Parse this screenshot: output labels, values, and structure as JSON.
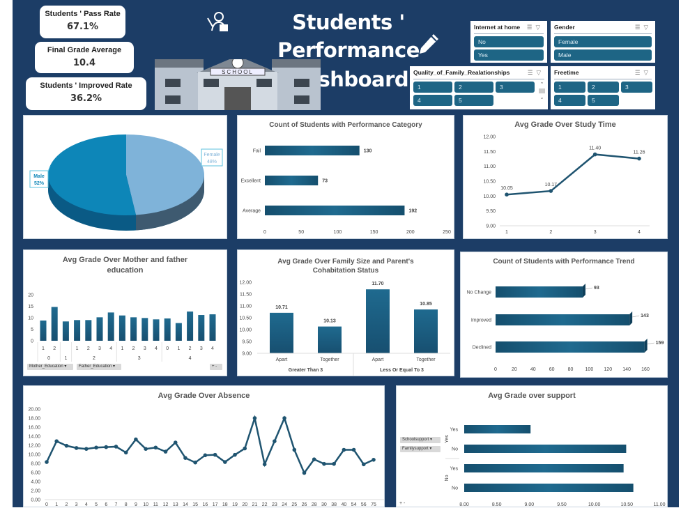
{
  "kpis": [
    {
      "label": "Students ' Pass Rate",
      "value": "67.1%"
    },
    {
      "label": "Final Grade Average",
      "value": "10.4"
    },
    {
      "label": "Students ' Improved Rate",
      "value": "36.2%"
    }
  ],
  "header": {
    "title_line1": "Students ' Performance",
    "title_line2": "Dashboard",
    "school_sign": "SCHOOL"
  },
  "slicers": {
    "internet": {
      "title": "Internet at home",
      "items": [
        "No",
        "Yes"
      ]
    },
    "gender": {
      "title": "Gender",
      "items": [
        "Female",
        "Male"
      ]
    },
    "family_rel": {
      "title": "Quality_of_Family_Realationships",
      "items": [
        "1",
        "2",
        "3",
        "4",
        "5"
      ]
    },
    "freetime": {
      "title": "Freetime",
      "items": [
        "1",
        "2",
        "3",
        "4",
        "5"
      ]
    }
  },
  "colors": {
    "background": "#1c3d66",
    "bar": "#1d6085",
    "line": "#1f5470",
    "pie_male": "#0d86b8",
    "pie_female": "#7fb3d9"
  },
  "chart_data": [
    {
      "id": "gender",
      "type": "pie",
      "categories": [
        "Female",
        "Male"
      ],
      "values": [
        48,
        52
      ],
      "labels": [
        "48%",
        "52%"
      ]
    },
    {
      "id": "category",
      "type": "bar",
      "orientation": "horizontal",
      "title": "Count of Students with Performance Category",
      "categories": [
        "Fail",
        "Excellent",
        "Average"
      ],
      "values": [
        130,
        73,
        192
      ],
      "xlim": [
        0,
        250
      ],
      "xticks": [
        0,
        50,
        100,
        150,
        200,
        250
      ]
    },
    {
      "id": "study",
      "type": "line",
      "title": "Avg Grade Over Study Time",
      "categories": [
        "1",
        "2",
        "3",
        "4"
      ],
      "values": [
        10.05,
        10.17,
        11.4,
        11.26
      ],
      "ylim": [
        9,
        12
      ],
      "yticks": [
        "9.00",
        "9.50",
        "10.00",
        "10.50",
        "11.00",
        "11.50",
        "12.00"
      ]
    },
    {
      "id": "education",
      "type": "bar",
      "title": "Avg Grade Over Mother and father education",
      "groups": [
        {
          "label": "0",
          "bars": [
            "1",
            "2"
          ]
        },
        {
          "label": "1",
          "bars": [
            ""
          ]
        },
        {
          "label": "2",
          "bars": [
            "1",
            "2",
            "3",
            "4"
          ]
        },
        {
          "label": "3",
          "bars": [
            "1",
            "2",
            "3",
            "4"
          ]
        },
        {
          "label": "4",
          "bars": [
            "0",
            "1",
            "2",
            "3",
            "4"
          ]
        }
      ],
      "values": [
        8.8,
        14.7,
        8.4,
        9.0,
        9.0,
        10.2,
        12.3,
        11.0,
        10.2,
        9.9,
        9.3,
        9.7,
        7.7,
        12.7,
        11.2,
        11.5
      ],
      "ylim": [
        0,
        20
      ],
      "yticks": [
        "0",
        "5",
        "10",
        "15",
        "20"
      ],
      "filters": [
        "Mother_Education",
        "Father_Education"
      ]
    },
    {
      "id": "family",
      "type": "bar",
      "title": "Avg  Grade Over Family Size and Parent's Cohabitation Status",
      "groups": [
        {
          "label": "Greater Than 3",
          "bars": [
            "Apart",
            "Together"
          ]
        },
        {
          "label": "Less Or Equal To 3",
          "bars": [
            "Apart",
            "Together"
          ]
        }
      ],
      "values": [
        10.71,
        10.13,
        11.7,
        10.85
      ],
      "labels": [
        "10.71",
        "10.13",
        "11.70",
        "10.85"
      ],
      "ylim": [
        9,
        12
      ],
      "yticks": [
        "9.00",
        "9.50",
        "10.00",
        "10.50",
        "11.00",
        "11.50",
        "12.00"
      ]
    },
    {
      "id": "trend",
      "type": "bar",
      "orientation": "horizontal",
      "title": "Count of Students with Performance Trend",
      "categories": [
        "No Change",
        "Improved",
        "Declined"
      ],
      "values": [
        93,
        143,
        159
      ],
      "xlim": [
        0,
        160
      ],
      "xticks": [
        0,
        20,
        40,
        60,
        80,
        100,
        120,
        140,
        160
      ]
    },
    {
      "id": "absence",
      "type": "line",
      "title": "Avg Grade Over Absence",
      "categories": [
        "0",
        "1",
        "2",
        "3",
        "4",
        "5",
        "6",
        "7",
        "8",
        "9",
        "10",
        "11",
        "12",
        "13",
        "14",
        "15",
        "16",
        "17",
        "18",
        "19",
        "20",
        "21",
        "22",
        "23",
        "24",
        "25",
        "26",
        "28",
        "30",
        "38",
        "40",
        "54",
        "56",
        "75"
      ],
      "values": [
        8.3,
        12.9,
        11.9,
        11.4,
        11.2,
        11.5,
        11.6,
        11.7,
        10.4,
        13.3,
        11.2,
        11.5,
        10.6,
        12.6,
        9.2,
        8.2,
        9.8,
        9.9,
        8.3,
        9.9,
        11.3,
        18.0,
        7.8,
        12.9,
        18.0,
        11.0,
        5.9,
        8.9,
        7.9,
        7.9,
        11.0,
        11.0,
        7.8,
        8.8
      ],
      "ylim": [
        0,
        20
      ],
      "yticks": [
        "0.00",
        "2.00",
        "4.00",
        "6.00",
        "8.00",
        "10.00",
        "12.00",
        "14.00",
        "16.00",
        "18.00",
        "20.00"
      ]
    },
    {
      "id": "support",
      "type": "bar",
      "orientation": "horizontal",
      "title": "Avg Grade over support",
      "groups": [
        {
          "label": "Yes",
          "bars": [
            "Yes",
            "No"
          ]
        },
        {
          "label": "No",
          "bars": [
            "Yes",
            "No"
          ]
        }
      ],
      "values": [
        9.02,
        10.49,
        10.45,
        10.6
      ],
      "xlim": [
        8,
        11
      ],
      "xticks": [
        "8.00",
        "8.50",
        "9.00",
        "9.50",
        "10.00",
        "10.50",
        "11.00"
      ],
      "filters": [
        "Schoolsupport",
        "Familysupport"
      ]
    }
  ]
}
